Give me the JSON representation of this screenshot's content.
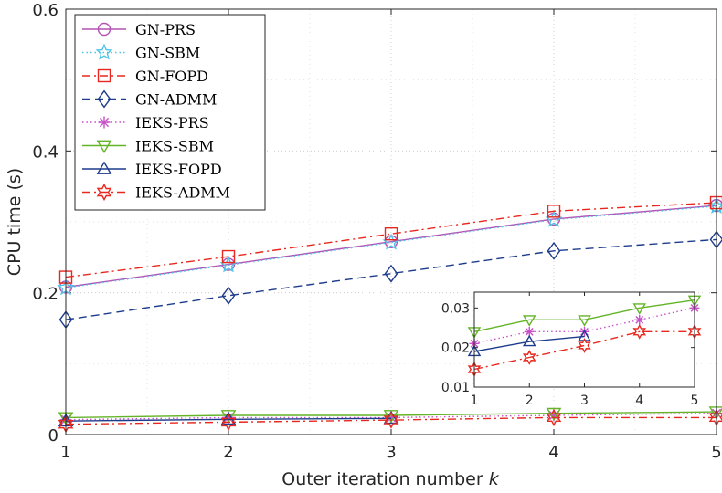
{
  "chart_data": {
    "type": "line",
    "xlabel": "Outer iteration number",
    "xlabel_var": "k",
    "ylabel": "CPU time (s)",
    "xlim": [
      1,
      5
    ],
    "ylim": [
      0,
      0.6
    ],
    "xticks": [
      "1",
      "2",
      "3",
      "4",
      "5"
    ],
    "yticks": [
      "0",
      "0.2",
      "0.4",
      "0.6"
    ],
    "grid": true,
    "legend_position": "top-left",
    "x": [
      1,
      2,
      3,
      4,
      5
    ],
    "series": [
      {
        "name": "GN-PRS",
        "color": "#b452b4",
        "marker": "circle",
        "dash": "solid",
        "values": [
          0.208,
          0.24,
          0.272,
          0.304,
          0.323
        ]
      },
      {
        "name": "GN-SBM",
        "color": "#4fc3e6",
        "marker": "pentagram",
        "dash": "dotted",
        "values": [
          0.207,
          0.239,
          0.271,
          0.303,
          0.322
        ]
      },
      {
        "name": "GN-FOPD",
        "color": "#e8281e",
        "marker": "square",
        "dash": "dashdot",
        "values": [
          0.222,
          0.251,
          0.283,
          0.315,
          0.327
        ]
      },
      {
        "name": "GN-ADMM",
        "color": "#1e3c8c",
        "marker": "diamond",
        "dash": "dashed",
        "values": [
          0.162,
          0.196,
          0.227,
          0.259,
          0.275
        ]
      },
      {
        "name": "IEKS-PRS",
        "color": "#c850c8",
        "marker": "asterisk",
        "dash": "dotted",
        "values": [
          0.021,
          0.024,
          0.024,
          0.027,
          0.03
        ]
      },
      {
        "name": "IEKS-SBM",
        "color": "#64b428",
        "marker": "triangle-down",
        "dash": "solid",
        "values": [
          0.024,
          0.027,
          0.027,
          0.03,
          0.032
        ]
      },
      {
        "name": "IEKS-FOPD",
        "color": "#1e3c8c",
        "marker": "triangle-up",
        "dash": "solid",
        "values": [
          0.019,
          0.0215,
          0.0228,
          null,
          null
        ]
      },
      {
        "name": "IEKS-ADMM",
        "color": "#e8281e",
        "marker": "hexagram",
        "dash": "dashdot",
        "values": [
          0.0145,
          0.0175,
          0.0205,
          0.024,
          0.024
        ]
      }
    ],
    "inset": {
      "xlim": [
        1,
        5
      ],
      "ylim": [
        0.01,
        0.034
      ],
      "xticks": [
        "1",
        "2",
        "3",
        "4",
        "5"
      ],
      "yticks": [
        "0.01",
        "0.02",
        "0.03"
      ],
      "series_shown": [
        "IEKS-PRS",
        "IEKS-SBM",
        "IEKS-FOPD",
        "IEKS-ADMM"
      ]
    }
  }
}
